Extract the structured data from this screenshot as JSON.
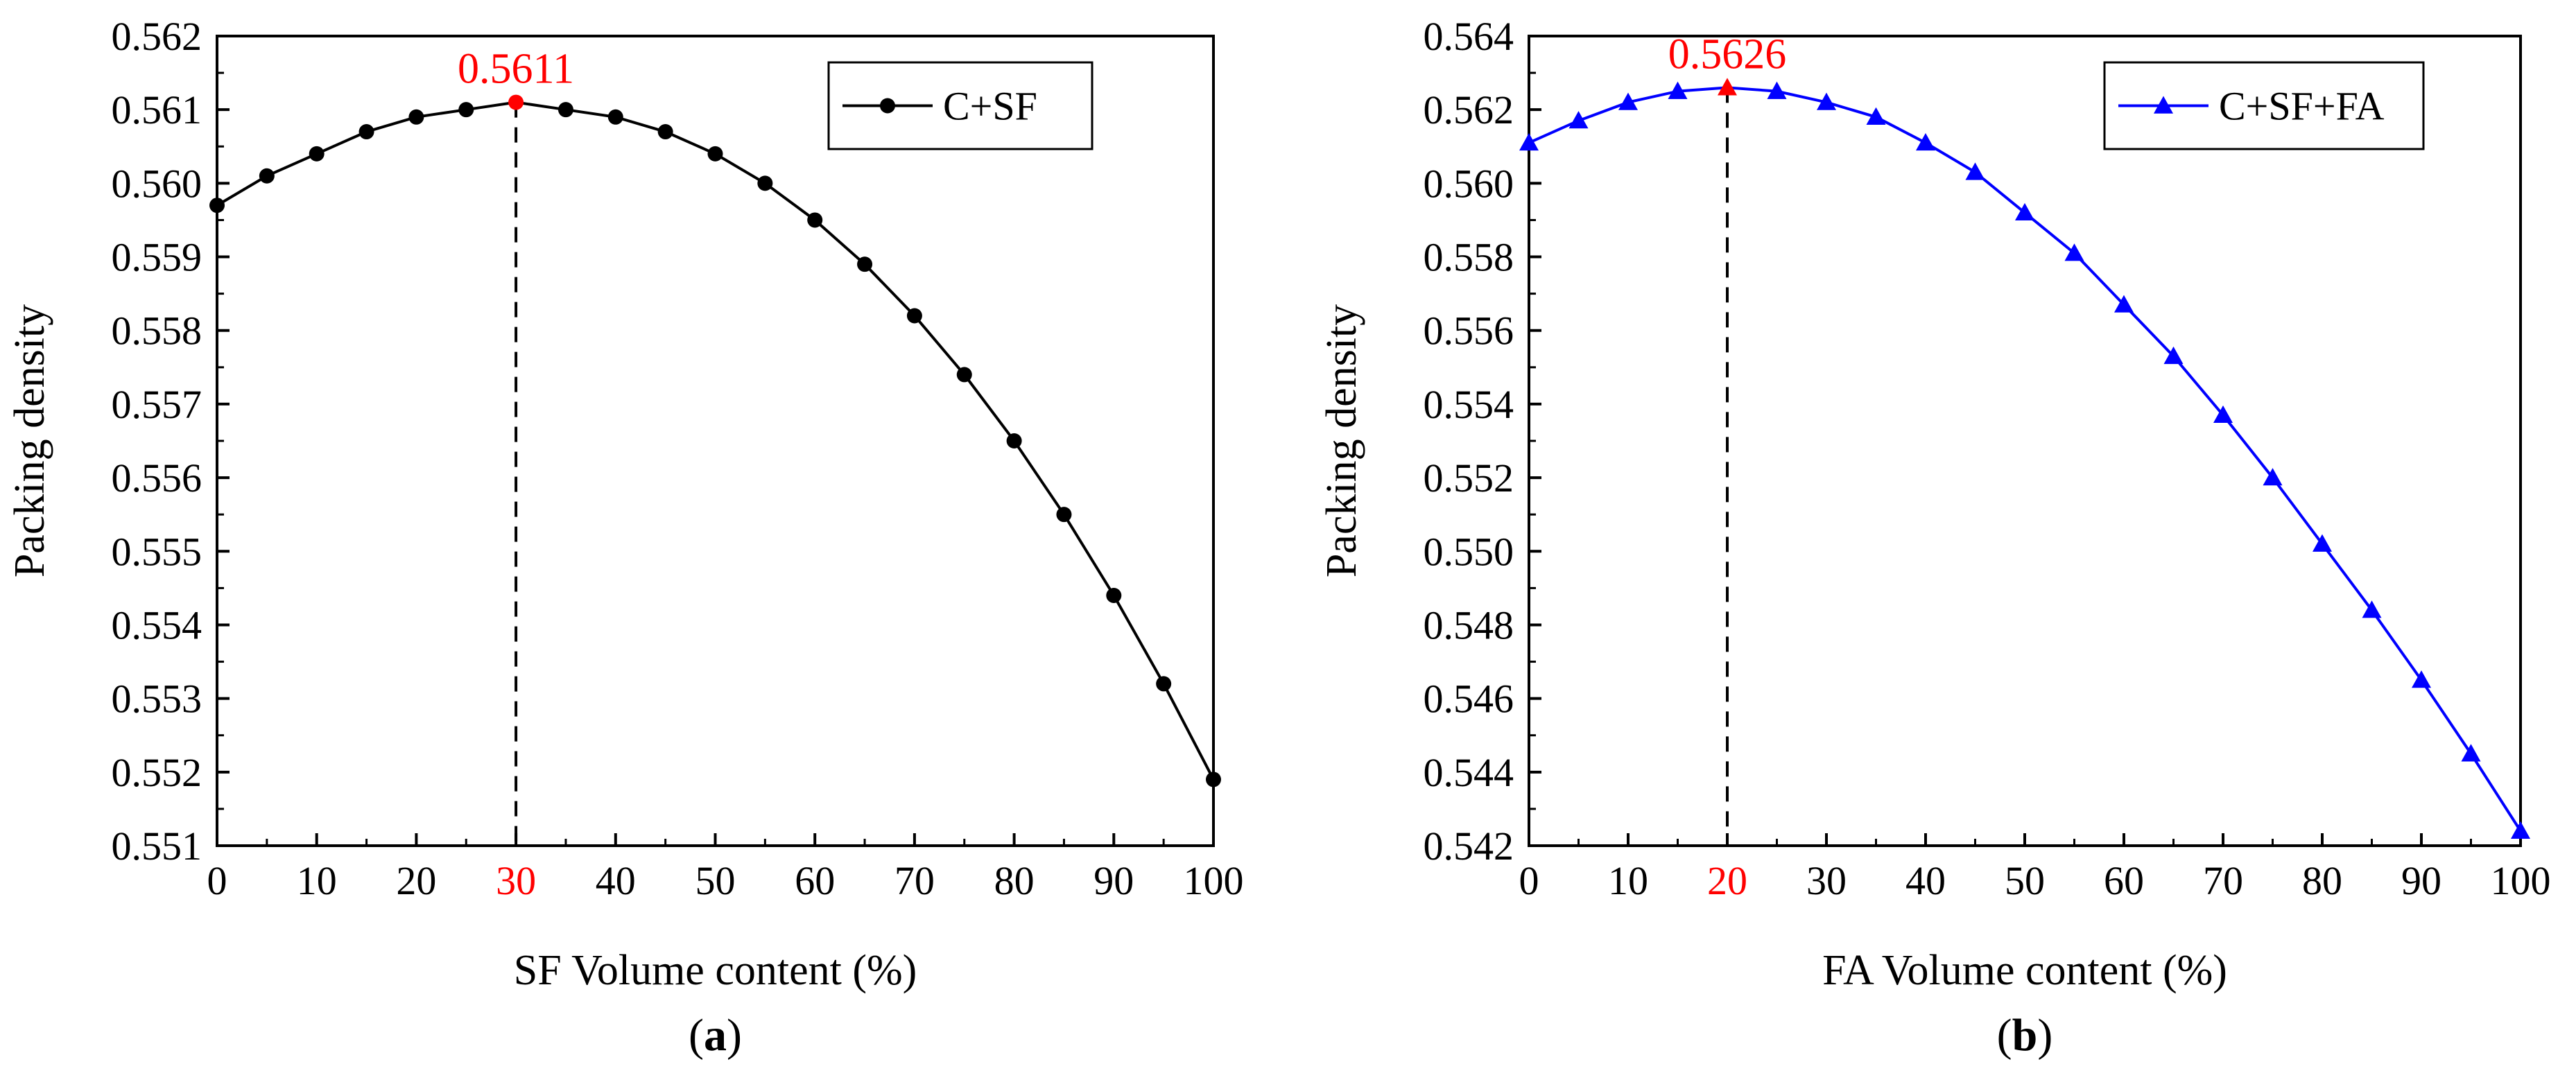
{
  "colors": {
    "panel_a_series": "#000000",
    "panel_b_series": "#0000ff",
    "highlight": "#ff0000",
    "axis": "#000000"
  },
  "chart_data": [
    {
      "type": "line",
      "panel_label": "a",
      "xlabel": "SF Volume content (%)",
      "ylabel": "Packing density",
      "xlim": [
        0,
        100
      ],
      "ylim": [
        0.551,
        0.562
      ],
      "xticks": [
        0,
        10,
        20,
        30,
        40,
        50,
        60,
        70,
        80,
        90,
        100
      ],
      "xtick_labels": [
        "0",
        "10",
        "20",
        "30",
        "40",
        "50",
        "60",
        "70",
        "80",
        "90",
        "100"
      ],
      "yticks": [
        0.551,
        0.552,
        0.553,
        0.554,
        0.555,
        0.556,
        0.557,
        0.558,
        0.559,
        0.56,
        0.561,
        0.562
      ],
      "ytick_labels": [
        "0.551",
        "0.552",
        "0.553",
        "0.554",
        "0.555",
        "0.556",
        "0.557",
        "0.558",
        "0.559",
        "0.560",
        "0.561",
        "0.562"
      ],
      "highlight_xtick": "30",
      "legend": {
        "placement": "top-right",
        "entries": [
          "C+SF"
        ]
      },
      "marker": "circle",
      "grid": false,
      "series": [
        {
          "name": "C+SF",
          "color": "#000000",
          "x": [
            0,
            5,
            10,
            15,
            20,
            25,
            30,
            35,
            40,
            45,
            50,
            55,
            60,
            65,
            70,
            75,
            80,
            85,
            90,
            95,
            100
          ],
          "y": [
            0.5597,
            0.5601,
            0.5604,
            0.5607,
            0.5609,
            0.561,
            0.5611,
            0.561,
            0.5609,
            0.5607,
            0.5604,
            0.56,
            0.5595,
            0.5589,
            0.5582,
            0.5574,
            0.5565,
            0.5555,
            0.5544,
            0.5532,
            0.5519
          ]
        }
      ],
      "annotation": {
        "text": "0.5611",
        "x": 30,
        "y": 0.5611
      }
    },
    {
      "type": "line",
      "panel_label": "b",
      "xlabel": "FA Volume content (%)",
      "ylabel": "Packing density",
      "xlim": [
        0,
        100
      ],
      "ylim": [
        0.542,
        0.564
      ],
      "xticks": [
        0,
        10,
        20,
        30,
        40,
        50,
        60,
        70,
        80,
        90,
        100
      ],
      "xtick_labels": [
        "0",
        "10",
        "20",
        "30",
        "40",
        "50",
        "60",
        "70",
        "80",
        "90",
        "100"
      ],
      "yticks": [
        0.542,
        0.544,
        0.546,
        0.548,
        0.55,
        0.552,
        0.554,
        0.556,
        0.558,
        0.56,
        0.562,
        0.564
      ],
      "ytick_labels": [
        "0.542",
        "0.544",
        "0.546",
        "0.548",
        "0.550",
        "0.552",
        "0.554",
        "0.556",
        "0.558",
        "0.560",
        "0.562",
        "0.564"
      ],
      "highlight_xtick": "20",
      "legend": {
        "placement": "top-right",
        "entries": [
          "C+SF+FA"
        ]
      },
      "marker": "triangle",
      "grid": false,
      "series": [
        {
          "name": "C+SF+FA",
          "color": "#0000ff",
          "x": [
            0,
            5,
            10,
            15,
            20,
            25,
            30,
            35,
            40,
            45,
            50,
            55,
            60,
            65,
            70,
            75,
            80,
            85,
            90,
            95,
            100
          ],
          "y": [
            0.5611,
            0.5617,
            0.5622,
            0.5625,
            0.5626,
            0.5625,
            0.5622,
            0.5618,
            0.5611,
            0.5603,
            0.5592,
            0.5581,
            0.5567,
            0.5553,
            0.5537,
            0.552,
            0.5502,
            0.5484,
            0.5465,
            0.5445,
            0.5424
          ]
        }
      ],
      "annotation": {
        "text": "0.5626",
        "x": 20,
        "y": 0.5626
      }
    }
  ]
}
